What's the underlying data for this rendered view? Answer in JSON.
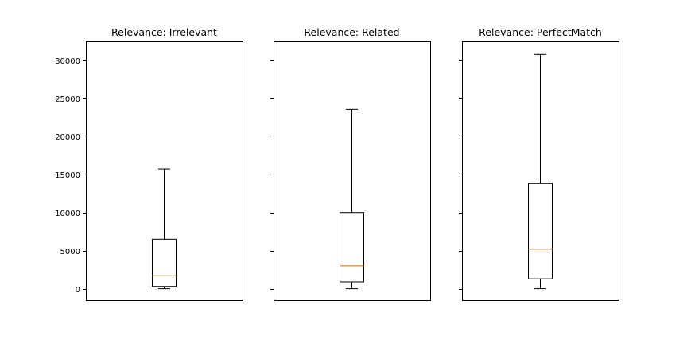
{
  "chart_data": {
    "type": "box",
    "sharey": true,
    "ylim": [
      -1500,
      32500
    ],
    "yticks": [
      0,
      5000,
      10000,
      15000,
      20000,
      25000,
      30000
    ],
    "ytick_labels": [
      "0",
      "5000",
      "10000",
      "15000",
      "20000",
      "25000",
      "30000"
    ],
    "median_color": "#e08a2c",
    "box_color": "#000000",
    "panels": [
      {
        "title": "Relevance: Irrelevant",
        "whisker_low": 0,
        "q1": 300,
        "median": 1700,
        "q3": 6500,
        "whisker_high": 15700
      },
      {
        "title": "Relevance: Related",
        "whisker_low": 0,
        "q1": 900,
        "median": 3000,
        "q3": 10000,
        "whisker_high": 23600
      },
      {
        "title": "Relevance: PerfectMatch",
        "whisker_low": 0,
        "q1": 1300,
        "median": 5200,
        "q3": 13800,
        "whisker_high": 30800
      }
    ]
  }
}
